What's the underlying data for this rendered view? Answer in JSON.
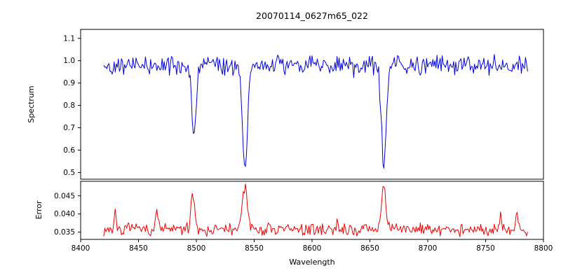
{
  "figure_title": "20070114_0627m65_022",
  "chart_data": [
    {
      "type": "line",
      "title": "20070114_0627m65_022",
      "xlabel": "Wavelength",
      "ylabel": "Spectrum",
      "xlim": [
        8400,
        8800
      ],
      "ylim": [
        0.47,
        1.14
      ],
      "xticks": [
        8400,
        8450,
        8500,
        8550,
        8600,
        8650,
        8700,
        8750,
        8800
      ],
      "yticks": [
        0.5,
        0.6,
        0.7,
        0.8,
        0.9,
        1.0,
        1.1
      ],
      "grid": false,
      "legend": null,
      "series": [
        {
          "name": "spectrum",
          "color": "#0000dd",
          "x_start": 8420,
          "x_end": 8787,
          "step": 0.9,
          "baseline": 0.978,
          "noise_amplitude": 0.05,
          "spike_probability": 0.08,
          "spike_amplitude": 0.05,
          "absorption_lines": [
            {
              "center": 8498,
              "min_value": 0.64,
              "depth": 0.34,
              "sigma": 1.6
            },
            {
              "center": 8542,
              "min_value": 0.51,
              "depth": 0.465,
              "sigma": 2.2
            },
            {
              "center": 8662,
              "min_value": 0.53,
              "depth": 0.445,
              "sigma": 2.1
            }
          ],
          "seed": 42
        }
      ]
    },
    {
      "type": "line",
      "title": "",
      "xlabel": "Wavelength",
      "ylabel": "Error",
      "xlim": [
        8400,
        8800
      ],
      "ylim": [
        0.033,
        0.049
      ],
      "xticks": [
        8400,
        8450,
        8500,
        8550,
        8600,
        8650,
        8700,
        8750,
        8800
      ],
      "yticks": [
        0.035,
        0.04,
        0.045
      ],
      "grid": false,
      "legend": null,
      "series": [
        {
          "name": "error",
          "color": "#ee0000",
          "x_start": 8420,
          "x_end": 8787,
          "step": 0.9,
          "baseline": 0.0357,
          "noise_amplitude": 0.002,
          "spike_probability": 0.05,
          "spike_amplitude": 0.003,
          "peaks": [
            {
              "center": 8430,
              "height": 0.0045,
              "sigma": 1.0,
              "peak_value": 0.04
            },
            {
              "center": 8466,
              "height": 0.006,
              "sigma": 1.0,
              "peak_value": 0.042
            },
            {
              "center": 8497,
              "height": 0.0095,
              "sigma": 1.8,
              "peak_value": 0.0455
            },
            {
              "center": 8542,
              "height": 0.0115,
              "sigma": 2.2,
              "peak_value": 0.047
            },
            {
              "center": 8662,
              "height": 0.012,
              "sigma": 2.0,
              "peak_value": 0.048
            },
            {
              "center": 8763,
              "height": 0.005,
              "sigma": 1.0,
              "peak_value": 0.041
            },
            {
              "center": 8777,
              "height": 0.0048,
              "sigma": 1.0,
              "peak_value": 0.041
            }
          ],
          "seed": 7
        }
      ]
    }
  ]
}
